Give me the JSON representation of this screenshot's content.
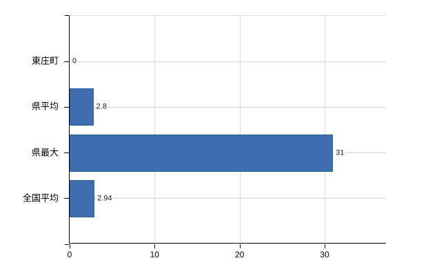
{
  "chart_data": {
    "type": "bar",
    "orientation": "horizontal",
    "title": "",
    "categories": [
      "東庄町",
      "県平均",
      "県最大",
      "全国平均"
    ],
    "values": [
      0,
      2.8,
      31,
      2.94
    ],
    "value_labels": [
      "0",
      "2.8",
      "31",
      "2.94"
    ],
    "x_ticks": [
      0,
      10,
      20,
      30
    ],
    "x_tick_labels": [
      "0",
      "10",
      "20",
      "30"
    ],
    "xlim": [
      0,
      37.3
    ],
    "grid": true,
    "legend": "none",
    "colors": {
      "bar_fill": "#3f6eb0",
      "bar_border": "#2e5f9e",
      "axis": "#000000",
      "vertical_gridline": "#d9d9d9",
      "row_gridline": "#ccd4cb",
      "text": "#000000",
      "background": "#ffffff"
    }
  }
}
